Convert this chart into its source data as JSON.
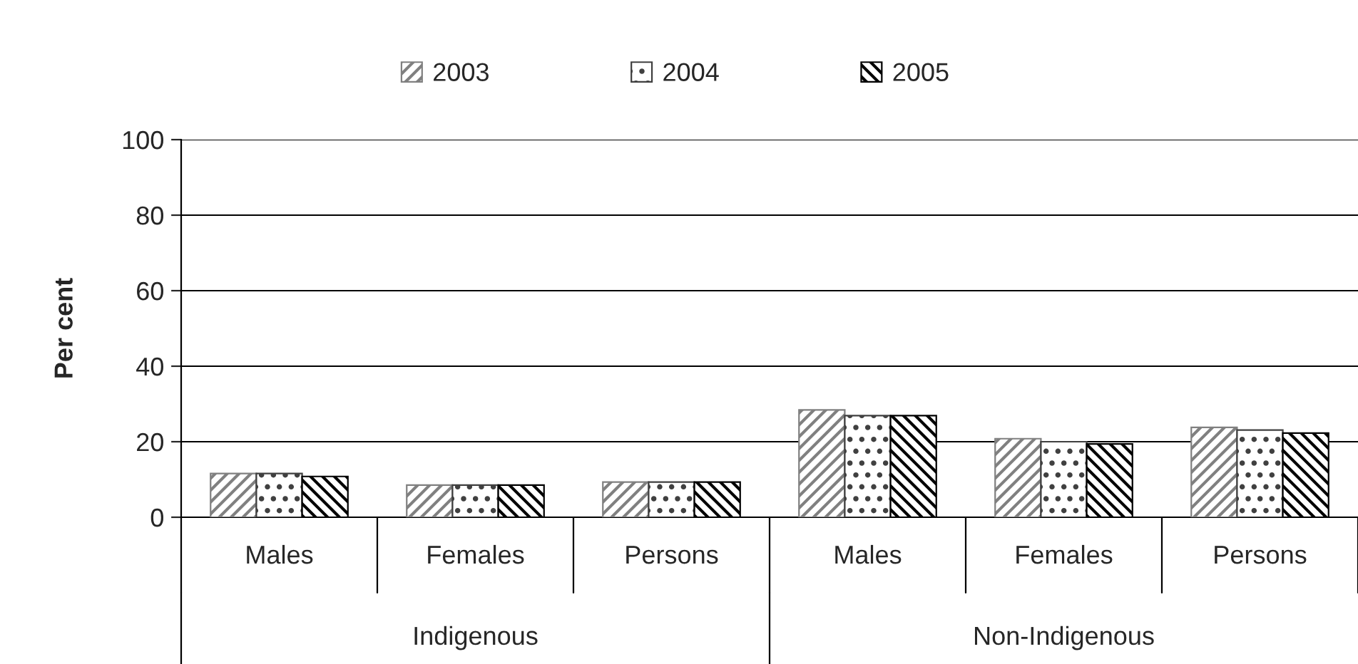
{
  "chart_data": {
    "type": "bar",
    "ylabel": "Per cent",
    "categories": [
      "Males",
      "Females",
      "Persons",
      "Males",
      "Females",
      "Persons"
    ],
    "series": [
      {
        "name": "2003",
        "color": "#808080",
        "values": [
          11.6,
          8.5,
          9.3,
          28.4,
          20.8,
          23.8
        ]
      },
      {
        "name": "2004",
        "color": "#404040",
        "values": [
          11.6,
          8.5,
          9.3,
          26.9,
          20.0,
          23.1
        ]
      },
      {
        "name": "2005",
        "color": "#000000",
        "values": [
          10.8,
          8.5,
          9.3,
          26.9,
          19.4,
          22.3
        ]
      }
    ],
    "annotations": [
      "Indigenous",
      "Non-Indigenous"
    ],
    "ylim": [
      0,
      100
    ],
    "yticks": [
      0,
      20,
      40,
      60,
      80,
      100
    ],
    "grid": "y",
    "legend": "top"
  }
}
